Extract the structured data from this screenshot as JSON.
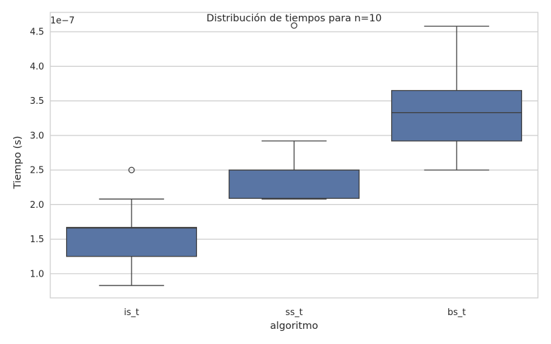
{
  "chart_data": {
    "type": "box",
    "title": "Distribución de tiempos para n=10",
    "xlabel": "algoritmo",
    "ylabel": "Tiempo (s)",
    "y_scale_label": "1e−7",
    "y_multiplier": 1e-07,
    "ylim": [
      0.65,
      4.78
    ],
    "yticks": [
      1.0,
      1.5,
      2.0,
      2.5,
      3.0,
      3.5,
      4.0,
      4.5
    ],
    "ytick_labels": [
      "1.0",
      "1.5",
      "2.0",
      "2.5",
      "3.0",
      "3.5",
      "4.0",
      "4.5"
    ],
    "grid": "horizontal",
    "box_color": "#5975a4",
    "line_color": "#3f3f3f",
    "categories": [
      "is_t",
      "ss_t",
      "bs_t"
    ],
    "boxes": [
      {
        "category": "is_t",
        "whisker_low": 0.83,
        "q1": 1.25,
        "median": 1.66,
        "q3": 1.67,
        "whisker_high": 2.08,
        "outliers": [
          2.5
        ]
      },
      {
        "category": "ss_t",
        "whisker_low": 2.08,
        "q1": 2.09,
        "median": 2.5,
        "q3": 2.5,
        "whisker_high": 2.92,
        "outliers": [
          4.59
        ]
      },
      {
        "category": "bs_t",
        "whisker_low": 2.5,
        "q1": 2.92,
        "median": 3.33,
        "q3": 3.65,
        "whisker_high": 4.58,
        "outliers": []
      }
    ]
  }
}
